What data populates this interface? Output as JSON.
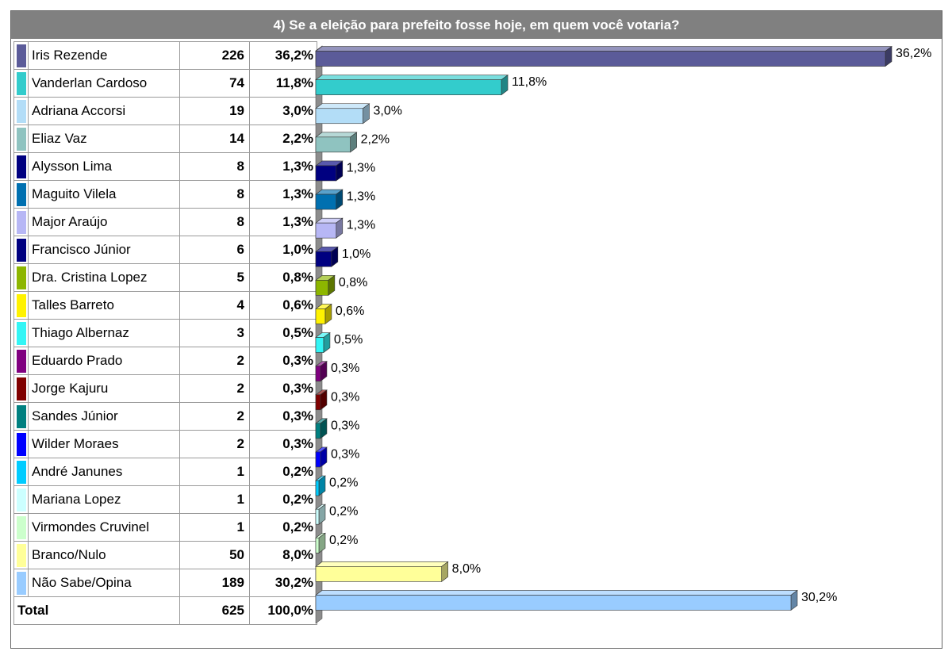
{
  "title": "4) Se a eleição para prefeito fosse hoje, em quem você votaria?",
  "total": {
    "label": "Total",
    "votes": "625",
    "percent": "100,0%"
  },
  "chart_data": {
    "type": "bar",
    "orientation": "horizontal",
    "style": "3d",
    "title": "4) Se a eleição para prefeito fosse hoje, em quem você votaria?",
    "xlim": [
      0,
      36.2
    ],
    "categories": [
      "Iris Rezende",
      "Vanderlan Cardoso",
      "Adriana Accorsi",
      "Eliaz Vaz",
      "Alysson Lima",
      "Maguito Vilela",
      "Major Araújo",
      "Francisco Júnior",
      "Dra. Cristina Lopez",
      "Talles Barreto",
      "Thiago Albernaz",
      "Eduardo Prado",
      "Jorge Kajuru",
      "Sandes Júnior",
      "Wilder Moraes",
      "André Janunes",
      "Mariana Lopez",
      "Virmondes Cruvinel",
      "Branco/Nulo",
      "Não Sabe/Opina"
    ],
    "votes": [
      "226",
      "74",
      "19",
      "14",
      "8",
      "8",
      "8",
      "6",
      "5",
      "4",
      "3",
      "2",
      "2",
      "2",
      "2",
      "1",
      "1",
      "1",
      "50",
      "189"
    ],
    "values": [
      36.2,
      11.8,
      3.0,
      2.2,
      1.3,
      1.3,
      1.3,
      1.0,
      0.8,
      0.6,
      0.5,
      0.3,
      0.3,
      0.3,
      0.3,
      0.2,
      0.2,
      0.2,
      8.0,
      30.2
    ],
    "labels": [
      "36,2%",
      "11,8%",
      "3,0%",
      "2,2%",
      "1,3%",
      "1,3%",
      "1,3%",
      "1,0%",
      "0,8%",
      "0,6%",
      "0,5%",
      "0,3%",
      "0,3%",
      "0,3%",
      "0,3%",
      "0,2%",
      "0,2%",
      "0,2%",
      "8,0%",
      "30,2%"
    ],
    "colors": [
      "#5B5B99",
      "#33CCCC",
      "#B3DDF7",
      "#8FC3C0",
      "#000080",
      "#0070B0",
      "#B7B7F5",
      "#000080",
      "#8DB600",
      "#FFF200",
      "#33F5F5",
      "#800080",
      "#800000",
      "#008080",
      "#0000FF",
      "#00CCFF",
      "#CCFFFF",
      "#CCFFCC",
      "#FFFF99",
      "#99CCFF"
    ],
    "grid": false,
    "legend": "none"
  }
}
